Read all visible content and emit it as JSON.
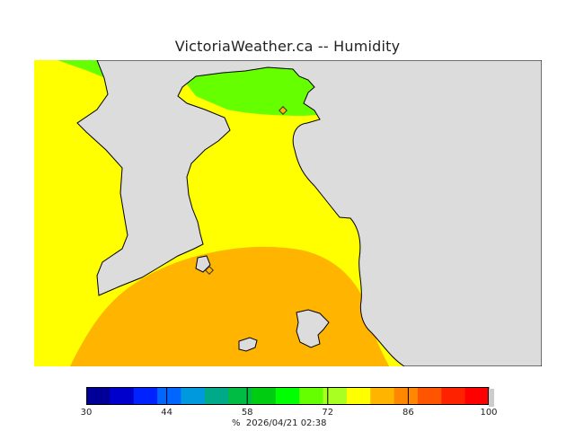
{
  "page": {
    "title": "VictoriaWeather.ca -- Humidity"
  },
  "map": {
    "land_color": "#dcdcdc",
    "coast_color": "#000000",
    "station_markers": [
      {
        "name": "station-marker-north"
      },
      {
        "name": "station-marker-victoria"
      }
    ],
    "humidity_zones": [
      {
        "name": "humidity-zone-yellow",
        "color": "#ffff00"
      },
      {
        "name": "humidity-zone-green",
        "color": "#66ff00"
      },
      {
        "name": "humidity-zone-orange",
        "color": "#ffb400"
      }
    ]
  },
  "legend": {
    "unit": "%",
    "timestamp": "2026/04/21 02:38",
    "min": 30,
    "max": 100,
    "tick_labels": [
      "30",
      "44",
      "58",
      "72",
      "86",
      "100"
    ],
    "bins": [
      {
        "color": "#000099"
      },
      {
        "color": "#0000cc"
      },
      {
        "color": "#0022ff"
      },
      {
        "color": "#0066ff"
      },
      {
        "color": "#0099dd"
      },
      {
        "color": "#00aa88"
      },
      {
        "color": "#00bb44"
      },
      {
        "color": "#00cc11"
      },
      {
        "color": "#00ff00"
      },
      {
        "color": "#66ff00"
      },
      {
        "color": "#aaff22"
      },
      {
        "color": "#ffff00"
      },
      {
        "color": "#ffb400"
      },
      {
        "color": "#ff8800"
      },
      {
        "color": "#ff5500"
      },
      {
        "color": "#ff2200"
      },
      {
        "color": "#ff0000"
      }
    ]
  }
}
